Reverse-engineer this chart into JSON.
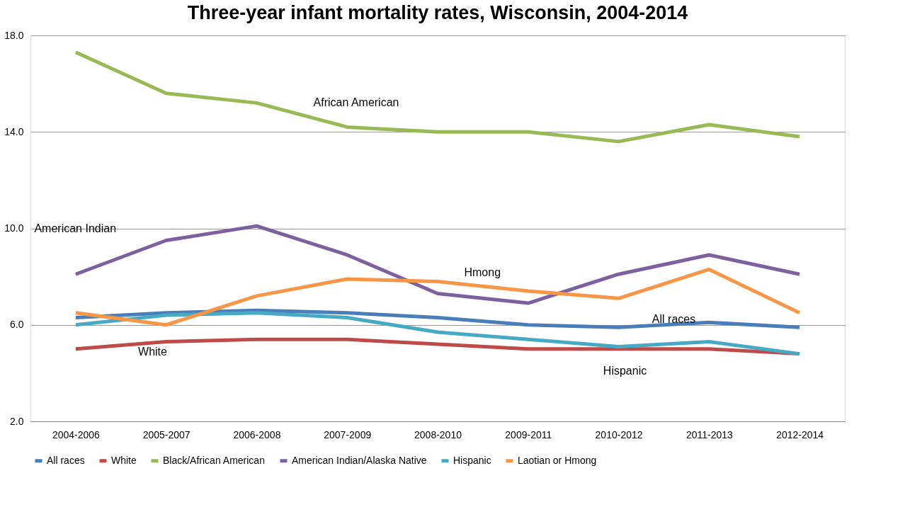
{
  "chart_data": {
    "type": "line",
    "title": "Three-year infant mortality rates, Wisconsin, 2004-2014",
    "categories": [
      "2004-2006",
      "2005-2007",
      "2006-2008",
      "2007-2009",
      "2008-2010",
      "2009-2011",
      "2010-2012",
      "2011-2013",
      "2012-2014"
    ],
    "series": [
      {
        "name": "All races",
        "color": "#4a7ebb",
        "values": [
          6.3,
          6.5,
          6.6,
          6.5,
          6.3,
          6.0,
          5.9,
          6.1,
          5.9
        ]
      },
      {
        "name": "White",
        "color": "#be4b48",
        "values": [
          5.0,
          5.3,
          5.4,
          5.4,
          5.2,
          5.0,
          5.0,
          5.0,
          4.8
        ]
      },
      {
        "name": "Black/African American",
        "color": "#98b954",
        "values": [
          17.3,
          15.6,
          15.2,
          14.2,
          14.0,
          14.0,
          13.6,
          14.3,
          13.8
        ]
      },
      {
        "name": "American Indian/Alaska Native",
        "color": "#7d60a0",
        "values": [
          8.1,
          9.5,
          10.1,
          8.9,
          7.3,
          6.9,
          8.1,
          8.9,
          8.1
        ]
      },
      {
        "name": "Hispanic",
        "color": "#46aac5",
        "values": [
          6.0,
          6.4,
          6.5,
          6.3,
          5.7,
          5.4,
          5.1,
          5.3,
          4.8
        ]
      },
      {
        "name": "Laotian or Hmong",
        "color": "#f79646",
        "values": [
          6.5,
          6.0,
          7.2,
          7.9,
          7.8,
          7.4,
          7.1,
          8.3,
          6.5
        ]
      }
    ],
    "ylim": [
      2.0,
      18.0
    ],
    "yticks": [
      {
        "value": 2,
        "label": "2.0"
      },
      {
        "value": 6,
        "label": "6.0"
      },
      {
        "value": 10,
        "label": "10.0"
      },
      {
        "value": 14,
        "label": "14.0"
      },
      {
        "value": 18,
        "label": "18.0"
      }
    ],
    "grid": "y",
    "legend": "bottom",
    "marker": "none",
    "line_style": "solid",
    "annotations": [
      "African American",
      "American Indian",
      "Hmong",
      "All races",
      "White",
      "Hispanic"
    ]
  }
}
